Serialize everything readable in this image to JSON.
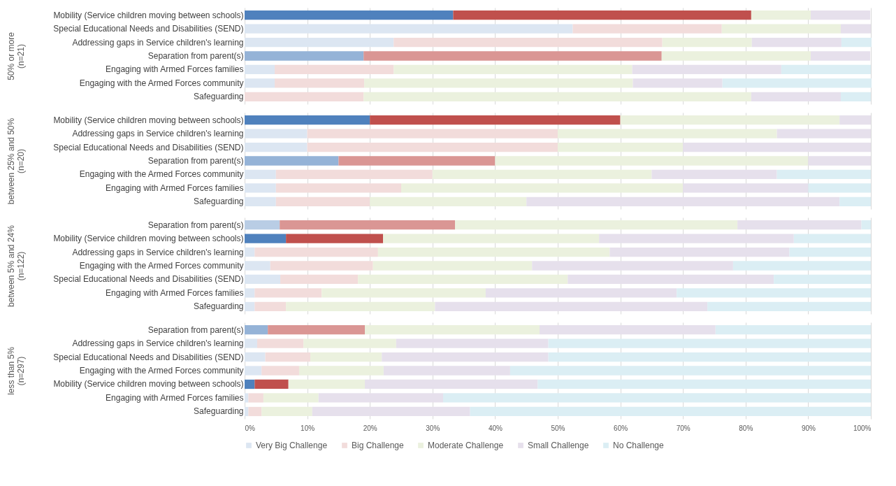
{
  "chart_data": [
    {
      "type": "bar",
      "orientation": "horizontal",
      "stacked": true,
      "ylabel": "50% or more\n(n=21)",
      "tick_labels": "y",
      "grid": "x",
      "xlim": [
        0,
        100
      ],
      "xticks": [
        {
          "value": 0,
          "label": null
        },
        {
          "value": 10,
          "label": null
        },
        {
          "value": 20,
          "label": null
        },
        {
          "value": 30,
          "label": null
        },
        {
          "value": 40,
          "label": null
        },
        {
          "value": 50,
          "label": null
        },
        {
          "value": 60,
          "label": null
        },
        {
          "value": 70,
          "label": null
        },
        {
          "value": 80,
          "label": null
        },
        {
          "value": 90,
          "label": null
        },
        {
          "value": 100,
          "label": null
        }
      ],
      "categories": [
        "Mobility (Service children moving between schools)",
        "Special Educational Needs and Disabilities (SEND)",
        "Addressing gaps in Service children's learning",
        "Separation from parent(s)",
        "Engaging with Armed Forces families",
        "Engaging with the Armed Forces community",
        "Safeguarding"
      ],
      "series": [
        {
          "color": "#dce6f2",
          "colors": [
            "#4f81bd",
            "#dce6f2",
            "#dce6f2",
            "#95b3d7",
            "#dce6f2",
            "#dce6f2",
            "#dce6f2"
          ],
          "values": [
            33.3,
            52.4,
            23.8,
            19.0,
            4.8,
            4.8,
            0
          ]
        },
        {
          "color": "#f2dcdb",
          "colors": [
            "#c0504d",
            "#f2dcdb",
            "#f2dcdb",
            "#da9694",
            "#f2dcdb",
            "#f2dcdb",
            "#f2dcdb"
          ],
          "values": [
            47.6,
            23.8,
            42.9,
            47.6,
            19.0,
            14.3,
            19.0
          ]
        },
        {
          "color": "#ebf1de",
          "values": [
            9.5,
            19.0,
            14.3,
            23.8,
            38.1,
            42.9,
            61.9
          ]
        },
        {
          "color": "#e6e0ec",
          "values": [
            9.5,
            4.8,
            14.3,
            9.5,
            23.8,
            14.3,
            14.3
          ]
        },
        {
          "color": "#dbeef4",
          "values": [
            0,
            0,
            4.8,
            0,
            14.3,
            23.8,
            4.8
          ]
        }
      ]
    },
    {
      "type": "bar",
      "orientation": "horizontal",
      "stacked": true,
      "ylabel": "between 25% and 50%\n(n=20)",
      "tick_labels": "y",
      "grid": "x",
      "xlim": [
        0,
        100
      ],
      "xticks": [
        {
          "value": 0,
          "label": null
        },
        {
          "value": 10,
          "label": null
        },
        {
          "value": 20,
          "label": null
        },
        {
          "value": 30,
          "label": null
        },
        {
          "value": 40,
          "label": null
        },
        {
          "value": 50,
          "label": null
        },
        {
          "value": 60,
          "label": null
        },
        {
          "value": 70,
          "label": null
        },
        {
          "value": 80,
          "label": null
        },
        {
          "value": 90,
          "label": null
        },
        {
          "value": 100,
          "label": null
        }
      ],
      "categories": [
        "Mobility (Service children moving between schools)",
        "Addressing gaps in Service children's learning",
        "Special Educational Needs and Disabilities (SEND)",
        "Separation from parent(s)",
        "Engaging with the Armed Forces community",
        "Engaging with Armed Forces families",
        "Safeguarding"
      ],
      "series": [
        {
          "color": "#dce6f2",
          "colors": [
            "#4f81bd",
            "#dce6f2",
            "#dce6f2",
            "#95b3d7",
            "#dce6f2",
            "#dce6f2",
            "#dce6f2"
          ],
          "values": [
            20,
            10,
            10,
            15,
            5,
            5,
            5
          ]
        },
        {
          "color": "#f2dcdb",
          "colors": [
            "#c0504d",
            "#f2dcdb",
            "#f2dcdb",
            "#da9694",
            "#f2dcdb",
            "#f2dcdb",
            "#f2dcdb"
          ],
          "values": [
            40,
            40,
            40,
            25,
            25,
            20,
            15
          ]
        },
        {
          "color": "#ebf1de",
          "values": [
            35,
            35,
            20,
            50,
            35,
            45,
            25
          ]
        },
        {
          "color": "#e6e0ec",
          "values": [
            5,
            15,
            30,
            10,
            20,
            20,
            50
          ]
        },
        {
          "color": "#dbeef4",
          "values": [
            0,
            0,
            0,
            0,
            15,
            10,
            5
          ]
        }
      ]
    },
    {
      "type": "bar",
      "orientation": "horizontal",
      "stacked": true,
      "ylabel": "between 5% and 24%\n(n=122)",
      "tick_labels": "y",
      "grid": "x",
      "xlim": [
        0,
        100
      ],
      "xticks": [
        {
          "value": 0,
          "label": null
        },
        {
          "value": 10,
          "label": null
        },
        {
          "value": 20,
          "label": null
        },
        {
          "value": 30,
          "label": null
        },
        {
          "value": 40,
          "label": null
        },
        {
          "value": 50,
          "label": null
        },
        {
          "value": 60,
          "label": null
        },
        {
          "value": 70,
          "label": null
        },
        {
          "value": 80,
          "label": null
        },
        {
          "value": 90,
          "label": null
        },
        {
          "value": 100,
          "label": null
        }
      ],
      "categories": [
        "Separation from parent(s)",
        "Mobility (Service children moving between schools)",
        "Addressing gaps in Service children's learning",
        "Engaging with the Armed Forces community",
        "Special Educational Needs and Disabilities (SEND)",
        "Engaging with Armed Forces families",
        "Safeguarding"
      ],
      "series": [
        {
          "color": "#dce6f2",
          "colors": [
            "#b9cde5",
            "#4f81bd",
            "#dce6f2",
            "#dce6f2",
            "#dce6f2",
            "#dce6f2",
            "#dce6f2"
          ],
          "values": [
            5.6,
            6.6,
            1.6,
            4.1,
            5.7,
            1.6,
            1.6
          ]
        },
        {
          "color": "#f2dcdb",
          "colors": [
            "#da9694",
            "#c0504d",
            "#f2dcdb",
            "#f2dcdb",
            "#f2dcdb",
            "#f2dcdb",
            "#f2dcdb"
          ],
          "values": [
            28.0,
            15.5,
            19.7,
            16.4,
            12.4,
            10.7,
            5.0
          ]
        },
        {
          "color": "#ebf1de",
          "values": [
            45.1,
            34.5,
            37.0,
            25.4,
            33.5,
            26.2,
            23.8
          ]
        },
        {
          "color": "#e6e0ec",
          "values": [
            19.8,
            31.1,
            28.7,
            32.1,
            32.9,
            30.5,
            43.5
          ]
        },
        {
          "color": "#dbeef4",
          "values": [
            1.5,
            12.3,
            13.0,
            22.0,
            15.5,
            31.0,
            26.1
          ]
        }
      ]
    },
    {
      "type": "bar",
      "orientation": "horizontal",
      "stacked": true,
      "ylabel": "less than 5%\n(n=297)",
      "grid": "x",
      "legend": "bottom",
      "xlim": [
        0,
        100
      ],
      "xticks": [
        {
          "value": 0,
          "label": "0%"
        },
        {
          "value": 10,
          "label": "10%"
        },
        {
          "value": 20,
          "label": "20%"
        },
        {
          "value": 30,
          "label": "30%"
        },
        {
          "value": 40,
          "label": "40%"
        },
        {
          "value": 50,
          "label": "50%"
        },
        {
          "value": 60,
          "label": "60%"
        },
        {
          "value": 70,
          "label": "70%"
        },
        {
          "value": 80,
          "label": "80%"
        },
        {
          "value": 90,
          "label": "90%"
        },
        {
          "value": 100,
          "label": "100%"
        }
      ],
      "categories": [
        "Separation from parent(s)",
        "Addressing gaps in Service children's learning",
        "Special Educational Needs and Disabilities (SEND)",
        "Engaging with the Armed Forces community",
        "Mobility (Service children moving between schools)",
        "Engaging with Armed Forces families",
        "Safeguarding"
      ],
      "series": [
        {
          "name": "Very Big Challenge",
          "color": "#dce6f2",
          "colors": [
            "#95b3d7",
            "#dce6f2",
            "#dce6f2",
            "#dce6f2",
            "#4f81bd",
            "#dce6f2",
            "#dce6f2"
          ],
          "values": [
            3.7,
            2.0,
            3.3,
            2.7,
            1.6,
            0.6,
            0.6
          ]
        },
        {
          "name": "Big Challenge",
          "color": "#f2dcdb",
          "colors": [
            "#da9694",
            "#f2dcdb",
            "#f2dcdb",
            "#f2dcdb",
            "#c0504d",
            "#f2dcdb",
            "#f2dcdb"
          ],
          "values": [
            15.5,
            7.4,
            7.2,
            6.0,
            5.4,
            2.4,
            2.1
          ]
        },
        {
          "name": "Moderate Challenge",
          "color": "#ebf1de",
          "values": [
            27.9,
            14.8,
            11.4,
            13.5,
            12.2,
            8.8,
            8.1
          ]
        },
        {
          "name": "Small Challenge",
          "color": "#e6e0ec",
          "values": [
            28.1,
            24.3,
            26.6,
            20.2,
            27.6,
            19.9,
            25.2
          ]
        },
        {
          "name": "No Challenge",
          "color": "#dbeef4",
          "values": [
            24.8,
            51.5,
            51.5,
            57.6,
            53.2,
            68.3,
            64.0
          ]
        }
      ]
    }
  ]
}
